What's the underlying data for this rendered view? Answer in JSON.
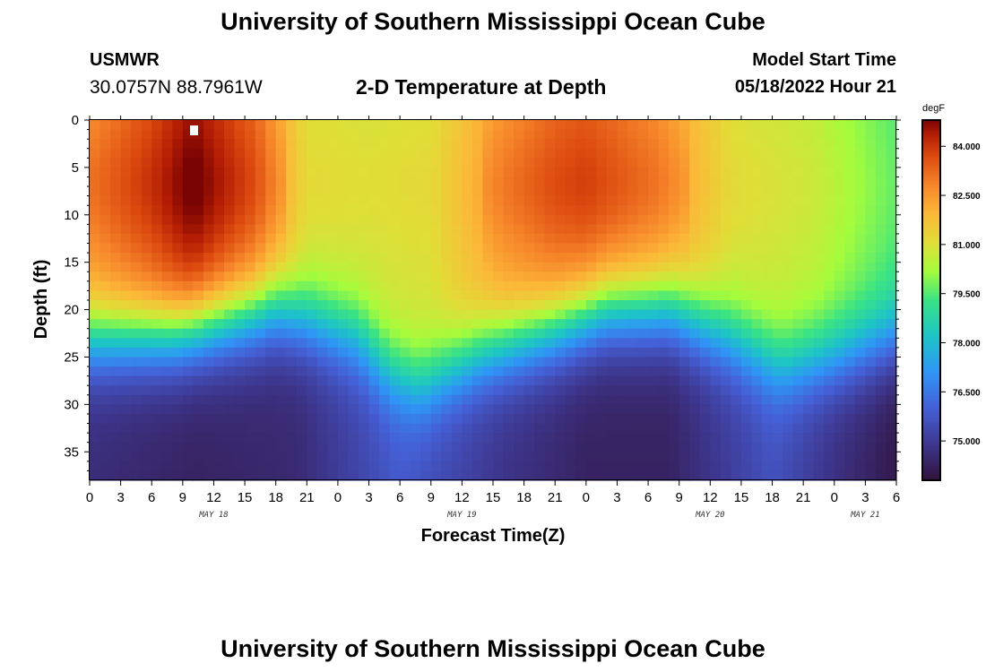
{
  "page": {
    "title_top": "University of Southern Mississippi Ocean Cube",
    "title_bottom": "University of Southern Mississippi Ocean Cube",
    "station": {
      "name": "USMWR",
      "coords": "30.0757N  88.7961W"
    },
    "plot_title": "2-D Temperature at Depth",
    "model_start": {
      "label": "Model Start Time",
      "value": "05/18/2022 Hour 21"
    }
  },
  "chart_data": {
    "type": "heatmap",
    "title": "2-D Temperature at Depth",
    "xlabel": "Forecast Time(Z)",
    "ylabel": "Depth (ft)",
    "x_hours_range": [
      0,
      78
    ],
    "x_tick_hours": [
      0,
      3,
      6,
      9,
      12,
      15,
      18,
      21,
      24,
      27,
      30,
      33,
      36,
      39,
      42,
      45,
      48,
      51,
      54,
      57,
      60,
      63,
      66,
      69,
      72,
      75,
      78
    ],
    "x_tick_labels": [
      "0",
      "3",
      "6",
      "9",
      "12",
      "15",
      "18",
      "21",
      "0",
      "3",
      "6",
      "9",
      "12",
      "15",
      "18",
      "21",
      "0",
      "3",
      "6",
      "9",
      "12",
      "15",
      "18",
      "21",
      "0",
      "3",
      "6"
    ],
    "date_labels": [
      {
        "label": "MAY 18",
        "hour": 12
      },
      {
        "label": "MAY 19",
        "hour": 36
      },
      {
        "label": "MAY 20",
        "hour": 60
      },
      {
        "label": "MAY 21",
        "hour": 75
      }
    ],
    "y_range": [
      0,
      38
    ],
    "y_ticks": [
      0,
      5,
      10,
      15,
      20,
      25,
      30,
      35
    ],
    "y_tick_labels": [
      "0",
      "5",
      "10",
      "15",
      "20",
      "25",
      "30",
      "35"
    ],
    "colorbar": {
      "unit": "degF",
      "min": 73.8,
      "max": 84.8,
      "ticks": [
        84.0,
        82.5,
        81.0,
        79.5,
        78.0,
        76.5,
        75.0
      ],
      "tick_labels": [
        "84.000",
        "82.500",
        "81.000",
        "79.500",
        "78.000",
        "76.500",
        "75.000"
      ]
    },
    "thermocline_depth_ft_by_hour": [
      {
        "hour": 0,
        "depth": 23.0
      },
      {
        "hour": 8,
        "depth": 22.5
      },
      {
        "hour": 18,
        "depth": 20.0
      },
      {
        "hour": 26,
        "depth": 23.0
      },
      {
        "hour": 29,
        "depth": 26.5
      },
      {
        "hour": 32,
        "depth": 28.0
      },
      {
        "hour": 38,
        "depth": 24.5
      },
      {
        "hour": 45,
        "depth": 22.0
      },
      {
        "hour": 50,
        "depth": 20.0
      },
      {
        "hour": 56,
        "depth": 20.0
      },
      {
        "hour": 62,
        "depth": 23.0
      },
      {
        "hour": 67,
        "depth": 26.0
      },
      {
        "hour": 72,
        "depth": 25.0
      },
      {
        "hour": 78,
        "depth": 23.0
      }
    ],
    "surface_temp_degF_by_hour": [
      {
        "hour": 0,
        "temp": 82.6
      },
      {
        "hour": 6,
        "temp": 83.6
      },
      {
        "hour": 10,
        "temp": 84.5
      },
      {
        "hour": 16,
        "temp": 83.2
      },
      {
        "hour": 21,
        "temp": 81.0
      },
      {
        "hour": 27,
        "temp": 80.9
      },
      {
        "hour": 33,
        "temp": 81.0
      },
      {
        "hour": 40,
        "temp": 82.5
      },
      {
        "hour": 45,
        "temp": 83.2
      },
      {
        "hour": 48,
        "temp": 83.4
      },
      {
        "hour": 55,
        "temp": 82.6
      },
      {
        "hour": 62,
        "temp": 81.0
      },
      {
        "hour": 70,
        "temp": 80.6
      },
      {
        "hour": 78,
        "temp": 79.5
      }
    ],
    "bottom_temp_degF_by_hour": [
      {
        "hour": 0,
        "temp": 74.6
      },
      {
        "hour": 10,
        "temp": 74.3
      },
      {
        "hour": 20,
        "temp": 74.5
      },
      {
        "hour": 30,
        "temp": 75.8
      },
      {
        "hour": 40,
        "temp": 74.8
      },
      {
        "hour": 48,
        "temp": 74.3
      },
      {
        "hour": 56,
        "temp": 74.3
      },
      {
        "hour": 66,
        "temp": 75.6
      },
      {
        "hour": 72,
        "temp": 74.7
      },
      {
        "hour": 78,
        "temp": 74.0
      }
    ]
  }
}
